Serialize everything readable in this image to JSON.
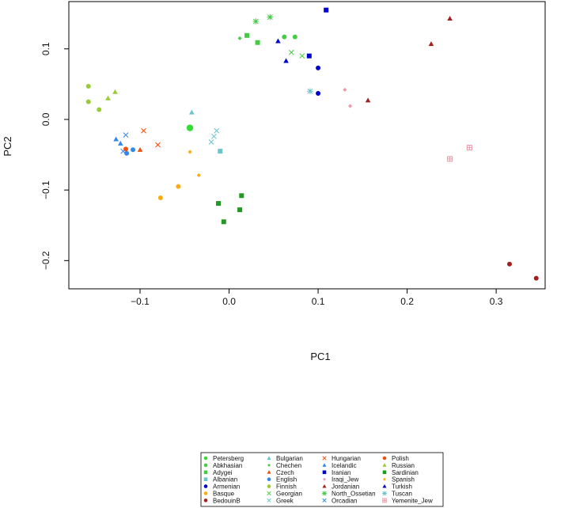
{
  "chart_data": {
    "type": "scatter",
    "title": "",
    "xlabel": "PC1",
    "ylabel": "PC2",
    "xlim": [
      -0.18,
      0.355
    ],
    "ylim": [
      -0.24,
      0.167
    ],
    "xticks": [
      -0.1,
      0.0,
      0.1,
      0.2,
      0.3
    ],
    "xtick_labels": [
      "−0.1",
      "0.0",
      "0.1",
      "0.2",
      "0.3"
    ],
    "yticks": [
      -0.2,
      -0.1,
      0.0,
      0.1
    ],
    "ytick_labels": [
      "−0.2",
      "−0.1",
      "0.0",
      "0.1"
    ],
    "grid": false,
    "legend_position": "bottom",
    "series": [
      {
        "name": "Petersberg",
        "color": "#33dd33",
        "marker": "circle",
        "points": [
          [
            -0.044,
            -0.012
          ]
        ]
      },
      {
        "name": "Abkhasian",
        "color": "#44cc44",
        "marker": "circle",
        "points": [
          [
            0.062,
            0.117
          ],
          [
            0.074,
            0.117
          ]
        ]
      },
      {
        "name": "Adygei",
        "color": "#44cc44",
        "marker": "square",
        "points": [
          [
            0.02,
            0.119
          ],
          [
            0.032,
            0.109
          ]
        ]
      },
      {
        "name": "Albanian",
        "color": "#6cc5cd",
        "marker": "square",
        "points": [
          [
            -0.01,
            -0.045
          ]
        ]
      },
      {
        "name": "Armenian",
        "color": "#0000cc",
        "marker": "circle",
        "points": [
          [
            0.1,
            0.073
          ],
          [
            0.1,
            0.037
          ]
        ]
      },
      {
        "name": "Basque",
        "color": "#ffaa11",
        "marker": "circle",
        "points": [
          [
            -0.077,
            -0.111
          ],
          [
            -0.057,
            -0.095
          ]
        ]
      },
      {
        "name": "BedouinB",
        "color": "#a32020",
        "marker": "circle",
        "points": [
          [
            0.315,
            -0.205
          ],
          [
            0.345,
            -0.225
          ]
        ]
      },
      {
        "name": "Bulgarian",
        "color": "#6cc5cd",
        "marker": "triangle",
        "points": [
          [
            -0.042,
            0.01
          ]
        ]
      },
      {
        "name": "Chechen",
        "color": "#44cc44",
        "marker": "diamond",
        "points": [
          [
            0.012,
            0.115
          ]
        ]
      },
      {
        "name": "Czech",
        "color": "#f05010",
        "marker": "triangle",
        "points": [
          [
            -0.1,
            -0.043
          ]
        ]
      },
      {
        "name": "English",
        "color": "#3388ee",
        "marker": "circle",
        "points": [
          [
            -0.108,
            -0.043
          ],
          [
            -0.115,
            -0.048
          ]
        ]
      },
      {
        "name": "Finnish",
        "color": "#99cc33",
        "marker": "circle",
        "points": [
          [
            -0.158,
            0.047
          ],
          [
            -0.158,
            0.025
          ],
          [
            -0.146,
            0.014
          ]
        ]
      },
      {
        "name": "Georgian",
        "color": "#44cc44",
        "marker": "x",
        "points": [
          [
            0.07,
            0.095
          ],
          [
            0.082,
            0.09
          ]
        ]
      },
      {
        "name": "Greek",
        "color": "#6cc5cd",
        "marker": "x",
        "points": [
          [
            -0.014,
            -0.016
          ],
          [
            -0.017,
            -0.024
          ],
          [
            -0.02,
            -0.032
          ]
        ]
      },
      {
        "name": "Hungarian",
        "color": "#f05010",
        "marker": "x",
        "points": [
          [
            -0.096,
            -0.016
          ],
          [
            -0.08,
            -0.036
          ]
        ]
      },
      {
        "name": "Icelandic",
        "color": "#3388ee",
        "marker": "triangle",
        "points": [
          [
            -0.127,
            -0.028
          ],
          [
            -0.122,
            -0.034
          ]
        ]
      },
      {
        "name": "Iranian",
        "color": "#0000cc",
        "marker": "square",
        "points": [
          [
            0.109,
            0.155
          ],
          [
            0.09,
            0.09
          ]
        ]
      },
      {
        "name": "Iraqi_Jew",
        "color": "#ee99aa",
        "marker": "diamond",
        "points": [
          [
            0.13,
            0.042
          ],
          [
            0.136,
            0.019
          ]
        ]
      },
      {
        "name": "Jordanian",
        "color": "#a32020",
        "marker": "triangle",
        "points": [
          [
            0.248,
            0.143
          ],
          [
            0.227,
            0.107
          ],
          [
            0.156,
            0.027
          ]
        ]
      },
      {
        "name": "North_Ossetian",
        "color": "#44cc44",
        "marker": "asterisk",
        "points": [
          [
            0.03,
            0.139
          ],
          [
            0.046,
            0.145
          ]
        ]
      },
      {
        "name": "Orcadian",
        "color": "#3388ee",
        "marker": "x",
        "points": [
          [
            -0.116,
            -0.022
          ],
          [
            -0.119,
            -0.045
          ]
        ]
      },
      {
        "name": "Polish",
        "color": "#f05010",
        "marker": "circle",
        "points": [
          [
            -0.116,
            -0.042
          ]
        ]
      },
      {
        "name": "Russian",
        "color": "#99cc33",
        "marker": "triangle",
        "points": [
          [
            -0.136,
            0.03
          ],
          [
            -0.128,
            0.039
          ]
        ]
      },
      {
        "name": "Sardinian",
        "color": "#229922",
        "marker": "square",
        "points": [
          [
            -0.012,
            -0.119
          ],
          [
            0.014,
            -0.108
          ],
          [
            0.012,
            -0.128
          ],
          [
            -0.006,
            -0.145
          ]
        ]
      },
      {
        "name": "Spanish",
        "color": "#ffaa11",
        "marker": "diamond",
        "points": [
          [
            -0.044,
            -0.046
          ],
          [
            -0.034,
            -0.079
          ]
        ]
      },
      {
        "name": "Turkish",
        "color": "#0000cc",
        "marker": "triangle",
        "points": [
          [
            0.055,
            0.111
          ],
          [
            0.064,
            0.083
          ]
        ]
      },
      {
        "name": "Tuscan",
        "color": "#6cc5cd",
        "marker": "asterisk",
        "points": [
          [
            0.091,
            0.04
          ]
        ]
      },
      {
        "name": "Yemenite_Jew",
        "color": "#ee99aa",
        "marker": "boxplus",
        "points": [
          [
            0.27,
            -0.04
          ],
          [
            0.248,
            -0.056
          ]
        ]
      }
    ]
  }
}
